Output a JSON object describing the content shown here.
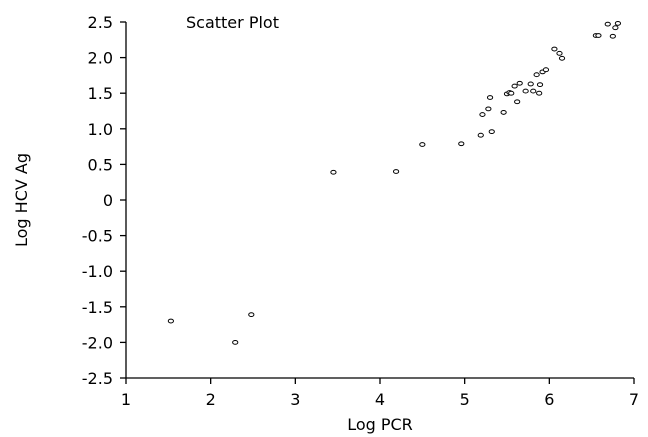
{
  "chart_data": {
    "type": "scatter",
    "title": "Scatter Plot",
    "xlabel": "Log PCR",
    "ylabel": "Log HCV Ag",
    "xlim": [
      1,
      7
    ],
    "ylim": [
      -2.5,
      2.5
    ],
    "x_ticks": [
      1,
      2,
      3,
      4,
      5,
      6,
      7
    ],
    "x_tick_labels": [
      "1",
      "2",
      "3",
      "4",
      "5",
      "6",
      "7"
    ],
    "y_ticks": [
      2.5,
      2.0,
      1.5,
      1.0,
      0.5,
      0,
      -0.5,
      -1.0,
      -1.5,
      -2.0,
      -2.5
    ],
    "y_tick_labels": [
      "2.5",
      "2.0",
      "1.5",
      "1.0",
      "0.5",
      "0",
      "-0.5",
      "-1.0",
      "-1.5",
      "-2.0",
      "-2.5"
    ],
    "grid": false,
    "series": [
      {
        "x": [
          1.53,
          2.29,
          2.48,
          3.45,
          4.19,
          4.5,
          4.96,
          5.19,
          5.21,
          5.28,
          5.3,
          5.32,
          5.46,
          5.5,
          5.53,
          5.55,
          5.59,
          5.62,
          5.65,
          5.72,
          5.78,
          5.81,
          5.85,
          5.88,
          5.89,
          5.92,
          5.96,
          6.06,
          6.12,
          6.15,
          6.55,
          6.58,
          6.69,
          6.75,
          6.78,
          6.81
        ],
        "y": [
          -1.7,
          -2.0,
          -1.61,
          0.39,
          0.4,
          0.78,
          0.79,
          0.91,
          1.2,
          1.28,
          1.44,
          0.96,
          1.23,
          1.49,
          1.51,
          1.5,
          1.6,
          1.38,
          1.64,
          1.53,
          1.63,
          1.53,
          1.76,
          1.5,
          1.62,
          1.8,
          1.83,
          2.12,
          2.06,
          1.99,
          2.31,
          2.31,
          2.47,
          2.3,
          2.42,
          2.48
        ]
      }
    ]
  }
}
